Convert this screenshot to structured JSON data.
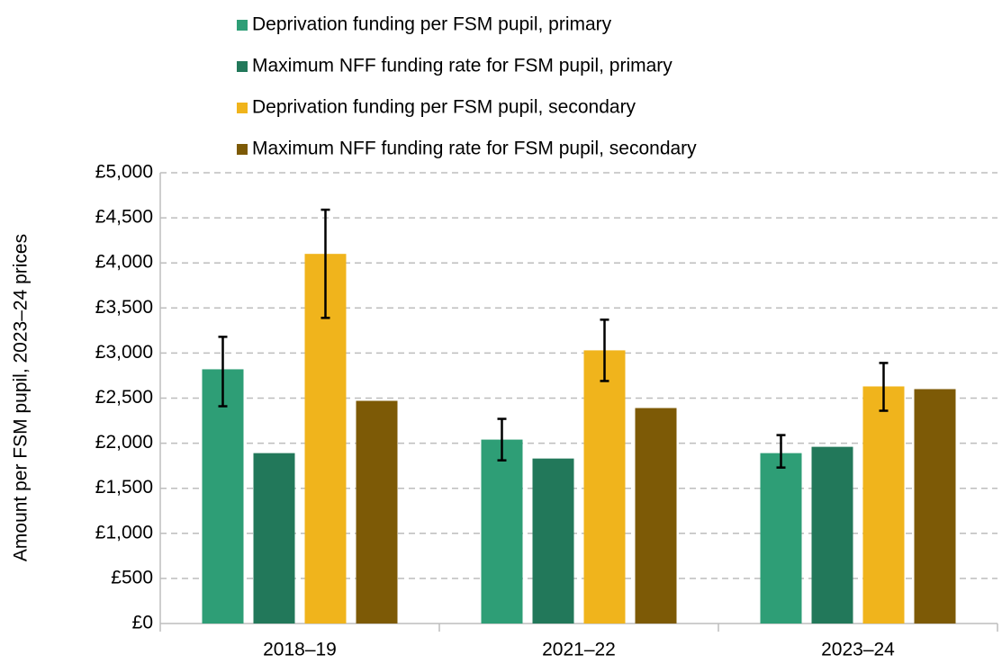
{
  "chart_data": {
    "type": "bar",
    "y_label": "Amount per FSM pupil, 2023–24 prices",
    "categories": [
      "2018–19",
      "2021–22",
      "2023–24"
    ],
    "series": [
      {
        "name": "Deprivation funding per FSM pupil, primary",
        "color": "#2e9e76",
        "values": [
          2820,
          2040,
          1890
        ],
        "error_low": [
          2410,
          1810,
          1730
        ],
        "error_high": [
          3180,
          2270,
          2090
        ]
      },
      {
        "name": "Maximum NFF funding rate for FSM pupil, primary",
        "color": "#22785a",
        "values": [
          1890,
          1830,
          1960
        ]
      },
      {
        "name": "Deprivation funding per FSM pupil, secondary",
        "color": "#f0b41c",
        "values": [
          4100,
          3030,
          2630
        ],
        "error_low": [
          3390,
          2690,
          2360
        ],
        "error_high": [
          4590,
          3370,
          2890
        ]
      },
      {
        "name": "Maximum NFF funding rate for FSM pupil, secondary",
        "color": "#7d5a06",
        "values": [
          2470,
          2390,
          2600
        ]
      }
    ],
    "ylim": [
      0,
      5000
    ],
    "yticks": [
      {
        "value": 0,
        "label": "£0"
      },
      {
        "value": 500,
        "label": "£500"
      },
      {
        "value": 1000,
        "label": "£1,000"
      },
      {
        "value": 1500,
        "label": "£1,500"
      },
      {
        "value": 2000,
        "label": "£2,000"
      },
      {
        "value": 2500,
        "label": "£2,500"
      },
      {
        "value": 3000,
        "label": "£3,000"
      },
      {
        "value": 3500,
        "label": "£3,500"
      },
      {
        "value": 4000,
        "label": "£4,000"
      },
      {
        "value": 4500,
        "label": "£4,500"
      },
      {
        "value": 5000,
        "label": "£5,000"
      }
    ],
    "grid": true,
    "legend": "top"
  }
}
